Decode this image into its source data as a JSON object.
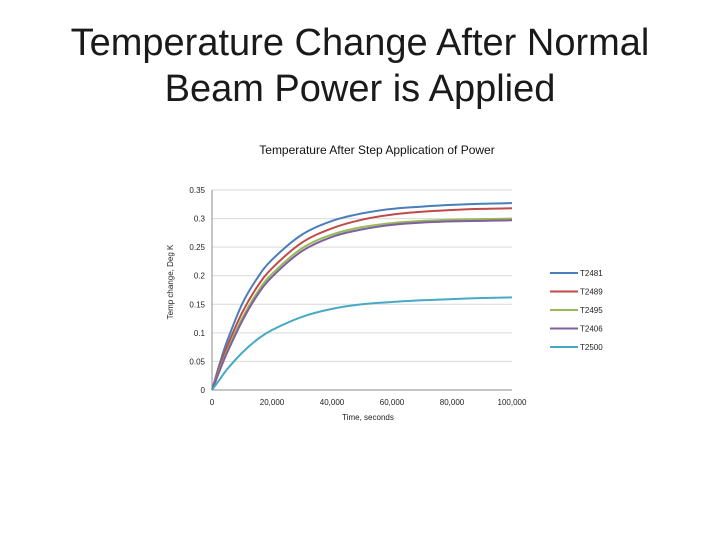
{
  "slide": {
    "title_line1": "Temperature Change After Normal",
    "title_line2": "Beam Power is Applied"
  },
  "chart_data": {
    "type": "line",
    "title": "Temperature After Step Application of Power",
    "xlabel": "Time, seconds",
    "ylabel": "Temp change, Deg K",
    "xlim": [
      0,
      100000
    ],
    "ylim": [
      0,
      0.35
    ],
    "x_ticks": [
      0,
      20000,
      40000,
      60000,
      80000,
      100000
    ],
    "x_tick_labels": [
      "0",
      "20,000",
      "40,000",
      "60,000",
      "80,000",
      "100,000"
    ],
    "y_ticks": [
      0,
      0.05,
      0.1,
      0.15,
      0.2,
      0.25,
      0.3,
      0.35
    ],
    "y_tick_labels": [
      "0",
      "0.05",
      "0.1",
      "0.15",
      "0.2",
      "0.25",
      "0.3",
      "0.35"
    ],
    "grid": "horizontal",
    "legend_position": "right",
    "x": [
      0,
      2500,
      5000,
      10000,
      15000,
      20000,
      30000,
      40000,
      50000,
      60000,
      70000,
      80000,
      90000,
      100000
    ],
    "series": [
      {
        "name": "T2481",
        "color": "#4a7ebb",
        "values": [
          0,
          0.045,
          0.085,
          0.15,
          0.195,
          0.228,
          0.272,
          0.296,
          0.309,
          0.317,
          0.321,
          0.324,
          0.326,
          0.327
        ]
      },
      {
        "name": "T2489",
        "color": "#be4b48",
        "values": [
          0,
          0.04,
          0.076,
          0.135,
          0.18,
          0.213,
          0.258,
          0.283,
          0.298,
          0.307,
          0.312,
          0.315,
          0.317,
          0.318
        ]
      },
      {
        "name": "T2495",
        "color": "#98b954",
        "values": [
          0,
          0.035,
          0.068,
          0.125,
          0.17,
          0.203,
          0.248,
          0.272,
          0.285,
          0.292,
          0.296,
          0.298,
          0.299,
          0.3
        ]
      },
      {
        "name": "T2406",
        "color": "#7d60a0",
        "values": [
          0,
          0.033,
          0.065,
          0.12,
          0.165,
          0.198,
          0.243,
          0.268,
          0.281,
          0.289,
          0.293,
          0.295,
          0.296,
          0.297
        ]
      },
      {
        "name": "T2500",
        "color": "#46aac5",
        "values": [
          0,
          0.018,
          0.036,
          0.065,
          0.088,
          0.105,
          0.128,
          0.142,
          0.15,
          0.154,
          0.157,
          0.159,
          0.161,
          0.162
        ]
      }
    ]
  }
}
